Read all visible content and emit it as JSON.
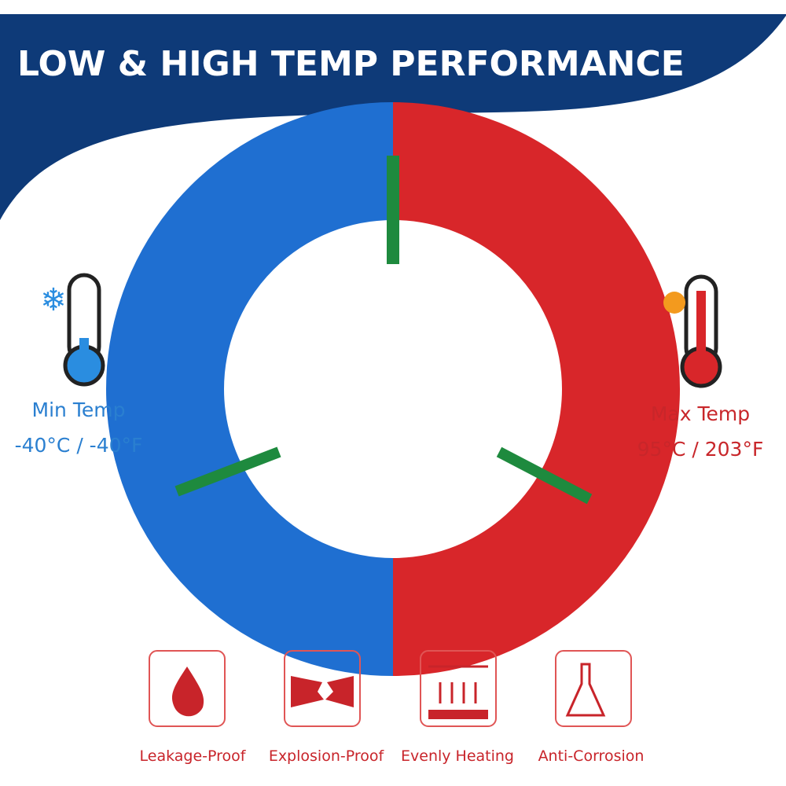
{
  "header": {
    "title": "LOW & HIGH TEMP PERFORMANCE"
  },
  "min": {
    "label": "Min Temp",
    "value": "-40°C / -40°F"
  },
  "max": {
    "label": "Max Temp",
    "value": "95°C / 203°F"
  },
  "features": [
    "Leakage-Proof",
    "Explosion-Proof",
    "Evenly Heating",
    "Anti-Corrosion"
  ]
}
